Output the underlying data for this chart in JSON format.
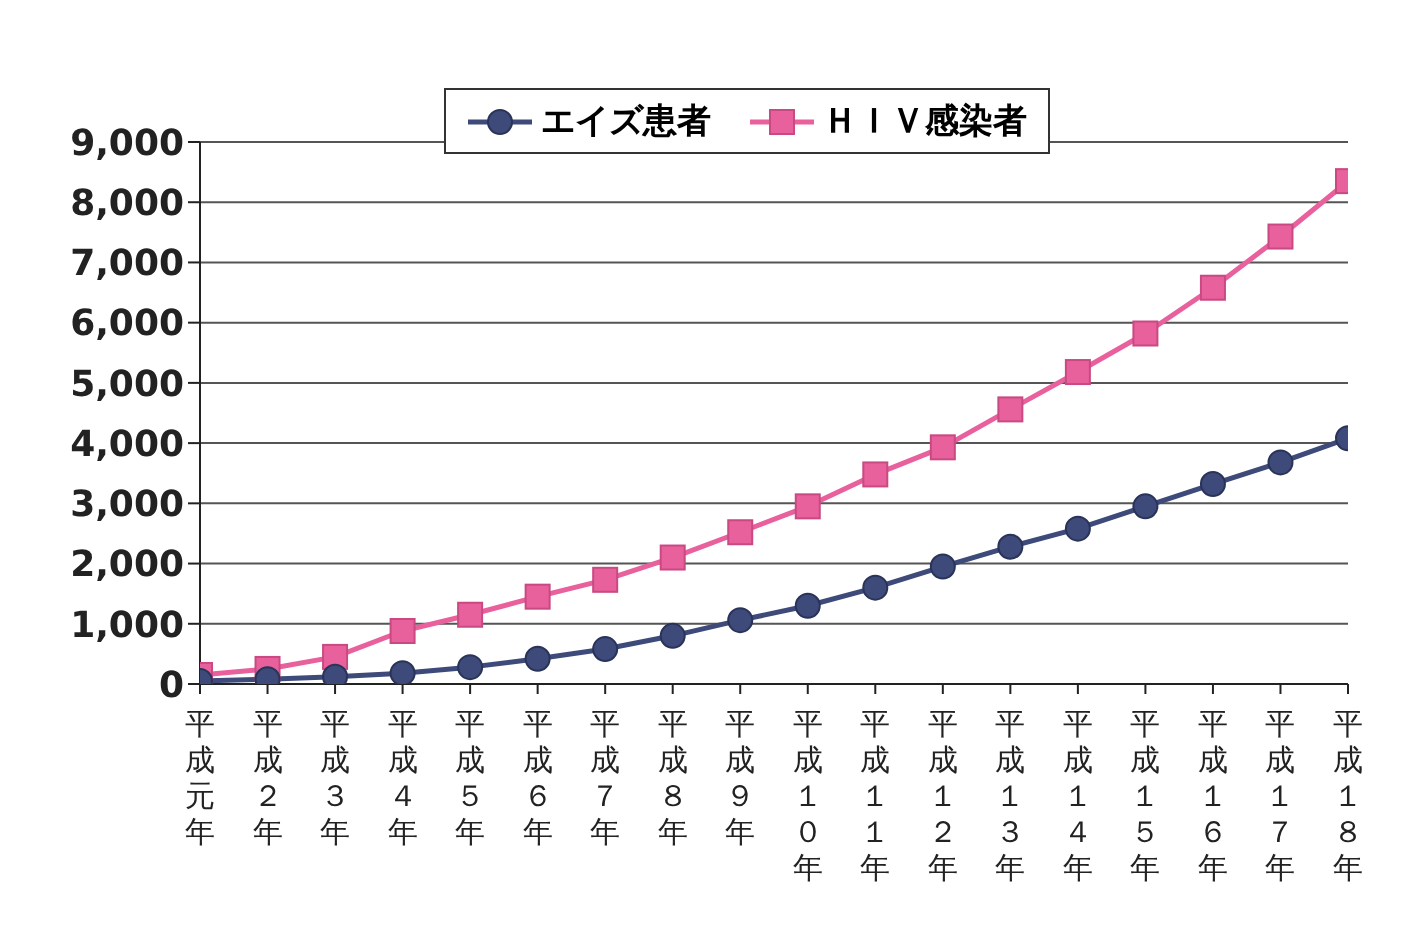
{
  "chart_data": {
    "type": "line",
    "categories": [
      "平成元年",
      "平成２年",
      "平成３年",
      "平成４年",
      "平成５年",
      "平成６年",
      "平成７年",
      "平成８年",
      "平成９年",
      "平成１０年",
      "平成１１年",
      "平成１２年",
      "平成１３年",
      "平成１４年",
      "平成１５年",
      "平成１６年",
      "平成１７年",
      "平成１８年"
    ],
    "series": [
      {
        "name": "エイズ患者",
        "color": "#3d4a7a",
        "marker": "circle",
        "values": [
          50,
          80,
          120,
          180,
          280,
          420,
          580,
          800,
          1060,
          1300,
          1600,
          1950,
          2280,
          2580,
          2950,
          3320,
          3680,
          4080
        ]
      },
      {
        "name": "ＨＩＶ感染者",
        "color": "#e8609c",
        "marker": "square",
        "values": [
          150,
          250,
          450,
          880,
          1150,
          1450,
          1730,
          2100,
          2520,
          2950,
          3480,
          3930,
          4560,
          5180,
          5820,
          6580,
          7430,
          8350
        ]
      }
    ],
    "ylim": [
      0,
      9000
    ],
    "yticks": [
      {
        "value": 0,
        "label": "0"
      },
      {
        "value": 1000,
        "label": "1,000"
      },
      {
        "value": 2000,
        "label": "2,000"
      },
      {
        "value": 3000,
        "label": "3,000"
      },
      {
        "value": 4000,
        "label": "4,000"
      },
      {
        "value": 5000,
        "label": "5,000"
      },
      {
        "value": 6000,
        "label": "6,000"
      },
      {
        "value": 7000,
        "label": "7,000"
      },
      {
        "value": 8000,
        "label": "8,000"
      },
      {
        "value": 9000,
        "label": "9,000"
      }
    ],
    "grid": "y",
    "legend": "top",
    "line_style": "solid"
  }
}
